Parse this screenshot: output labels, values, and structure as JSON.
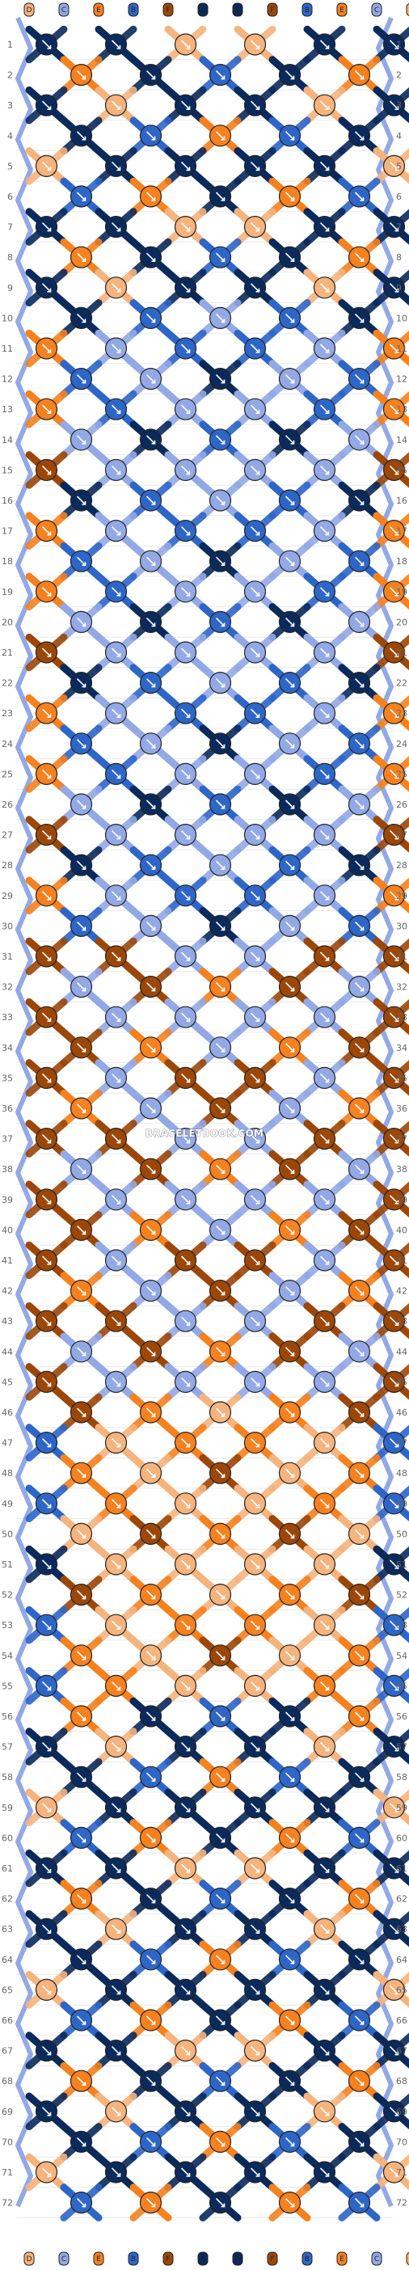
{
  "diagram": {
    "rows": 72,
    "strings_top": [
      "D",
      "C",
      "E",
      "B",
      "F",
      "A",
      "A",
      "F",
      "B",
      "E",
      "C",
      "D"
    ],
    "strings_bottom": [
      "D",
      "C",
      "E",
      "B",
      "F",
      "A",
      "A",
      "F",
      "B",
      "E",
      "C",
      "D"
    ],
    "watermark": "BRACELETBOOK.COM",
    "colors": {
      "A": "#0b2a5c",
      "B": "#2e66c8",
      "C": "#93a9e6",
      "D": "#f5b47e",
      "E": "#f5811f",
      "F": "#9c4708"
    },
    "outline": "#222222",
    "grid": "#dddddd"
  }
}
